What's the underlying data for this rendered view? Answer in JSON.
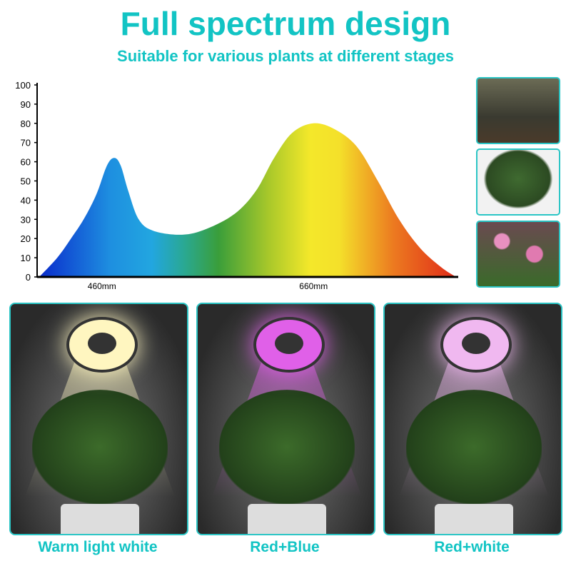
{
  "header": {
    "title": "Full spectrum design",
    "subtitle": "Suitable for various plants at different stages"
  },
  "chart_data": {
    "type": "area",
    "title": "",
    "xlabel": "",
    "ylabel": "",
    "ylim": [
      0,
      100
    ],
    "yticks": [
      0,
      10,
      20,
      30,
      40,
      50,
      60,
      70,
      80,
      90,
      100
    ],
    "xtick_labels": [
      {
        "x": 460,
        "label": "460mm"
      },
      {
        "x": 660,
        "label": "660mm"
      }
    ],
    "xlim": [
      392,
      790
    ],
    "grid": false,
    "fill": "rainbow gradient blue to red",
    "x": [
      394,
      411,
      424,
      436,
      448,
      458,
      465,
      471,
      478,
      488,
      502,
      529,
      552,
      579,
      599,
      616,
      633,
      653,
      673,
      694,
      714,
      734,
      754,
      774,
      788
    ],
    "y": [
      0,
      10,
      20,
      30,
      43,
      58,
      62,
      58,
      45,
      30,
      24,
      22,
      25,
      33,
      45,
      62,
      75,
      80,
      77,
      68,
      50,
      30,
      15,
      5,
      0
    ]
  },
  "colors": {
    "accent": "#12c4c4",
    "border": "#2bc5c5"
  },
  "panels": [
    {
      "caption": "Warm light white",
      "light": "#fff6c0"
    },
    {
      "caption": "Red+Blue",
      "light": "#e060e8"
    },
    {
      "caption": "Red+white",
      "light": "#f0b8f0"
    }
  ]
}
